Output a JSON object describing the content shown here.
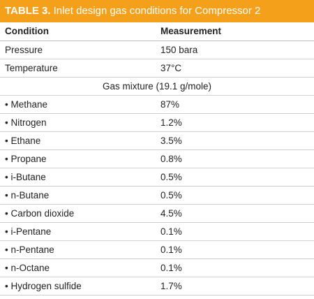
{
  "header": {
    "label": "TABLE 3.",
    "title": "Inlet design gas conditions for Compressor 2"
  },
  "table": {
    "columns": [
      "Condition",
      "Measurement"
    ],
    "rows": [
      [
        "Pressure",
        "150 bara"
      ],
      [
        "Temperature",
        "37°C"
      ],
      [
        "Gas mixture (19.1 g/mole)"
      ],
      [
        "• Methane",
        "87%"
      ],
      [
        "• Nitrogen",
        "1.2%"
      ],
      [
        "• Ethane",
        "3.5%"
      ],
      [
        "• Propane",
        "0.8%"
      ],
      [
        "• i-Butane",
        "0.5%"
      ],
      [
        "• n-Butane",
        "0.5%"
      ],
      [
        "• Carbon dioxide",
        "4.5%"
      ],
      [
        "• i-Pentane",
        "0.1%"
      ],
      [
        "• n-Pentane",
        "0.1%"
      ],
      [
        "• n-Octane",
        "0.1%"
      ],
      [
        "• Hydrogen sulfide",
        "1.7%"
      ]
    ]
  }
}
